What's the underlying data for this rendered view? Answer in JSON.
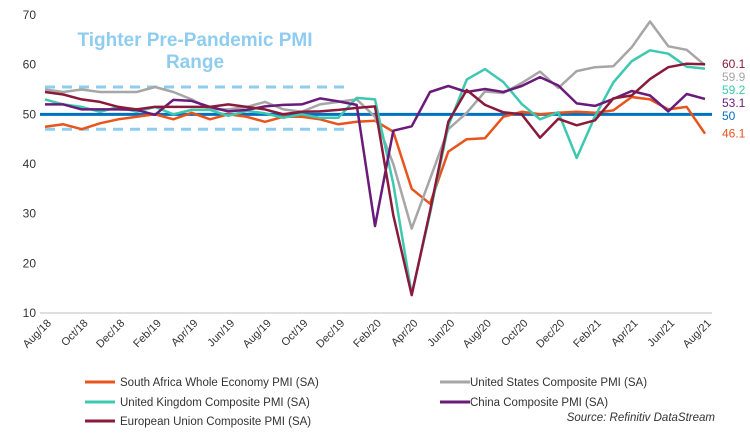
{
  "chart_data": {
    "type": "line",
    "categories": [
      "Aug/18",
      null,
      "Oct/18",
      null,
      "Dec/18",
      null,
      "Feb/19",
      null,
      "Apr/19",
      null,
      "Jun/19",
      null,
      "Aug/19",
      null,
      "Oct/19",
      null,
      "Dec/19",
      null,
      "Feb/20",
      null,
      "Apr/20",
      null,
      "Jun/20",
      null,
      "Aug/20",
      null,
      "Oct/20",
      null,
      "Dec/20",
      null,
      "Feb/21",
      null,
      "Apr/21",
      null,
      "Jun/21",
      null,
      "Aug/21"
    ],
    "ylim": [
      10,
      70
    ],
    "yticks": [
      10,
      20,
      30,
      40,
      50,
      60,
      70
    ],
    "series": [
      {
        "name": "South Africa Whole Economy PMI (SA)",
        "color": "#e8541c",
        "values": [
          47.5,
          48,
          47,
          48.2,
          49,
          49.5,
          50,
          49,
          50.3,
          49,
          50,
          49.5,
          48.5,
          49.5,
          49.5,
          49,
          48,
          48.5,
          48.7,
          46.5,
          35,
          32,
          42.5,
          45,
          45.2,
          49.5,
          50.5,
          50,
          50.3,
          50.5,
          50.3,
          50.8,
          53.5,
          53,
          51,
          51.5,
          46.1
        ]
      },
      {
        "name": "United States Composite PMI (SA)",
        "color": "#a6a6a6",
        "values": [
          55,
          54.5,
          55,
          54.5,
          54.5,
          54.5,
          55.5,
          54.5,
          53,
          51,
          51,
          51.5,
          52.5,
          51,
          50.5,
          52,
          52.5,
          53,
          49.5,
          40,
          27,
          37,
          47,
          50.3,
          54.6,
          54.3,
          56.3,
          58.6,
          55.3,
          58.7,
          59.5,
          59.7,
          63.5,
          68.7,
          63.7,
          63,
          59.9
        ]
      },
      {
        "name": "United Kingdom  Composite PMI (SA)",
        "color": "#3dc9b0",
        "values": [
          53,
          52,
          51.5,
          50.5,
          51.5,
          50.5,
          51.5,
          50,
          50.9,
          50.9,
          49.7,
          50.7,
          50.2,
          49.3,
          50,
          49.3,
          49.3,
          53.3,
          53,
          36,
          13.8,
          30,
          47.7,
          57,
          59.1,
          56.5,
          52.1,
          49,
          50.4,
          41.2,
          49.6,
          56.4,
          60.7,
          62.9,
          62.2,
          59.6,
          59.2
        ]
      },
      {
        "name": "China Composite PMI (SA)",
        "color": "#6a1b7a",
        "values": [
          52,
          52,
          51,
          51,
          51,
          50.9,
          49.9,
          52.9,
          52.7,
          51.5,
          50.6,
          50.9,
          51.6,
          51.9,
          52,
          53.2,
          52.6,
          51.9,
          27.5,
          46.7,
          47.6,
          54.5,
          55.7,
          54.5,
          55.1,
          54.5,
          55.7,
          57.5,
          55.8,
          52.2,
          51.7,
          53.1,
          54.7,
          53.8,
          50.6,
          54.1,
          53.1
        ]
      },
      {
        "name": "European Union Composite PMI (SA)",
        "color": "#8b1a3a",
        "values": [
          54.5,
          54,
          53,
          52.5,
          51.5,
          51,
          51.5,
          51.5,
          51.5,
          51.5,
          52,
          51.5,
          51,
          50,
          50.5,
          50.6,
          50.9,
          51.3,
          51.6,
          29.7,
          13.6,
          30.5,
          48.5,
          54.9,
          51.9,
          50.4,
          50,
          45.3,
          49.1,
          47.8,
          48.8,
          53.2,
          53.8,
          57.1,
          59.5,
          60.2,
          60.1
        ]
      }
    ],
    "reference_line": {
      "value": 50,
      "color": "#0070c0"
    },
    "band": {
      "label": "Tighter Pre-Pandemic PMI Range",
      "values": [
        47,
        55.5
      ],
      "color": "#8ecdf0"
    },
    "source": "Source: Refinitiv DataStream"
  }
}
